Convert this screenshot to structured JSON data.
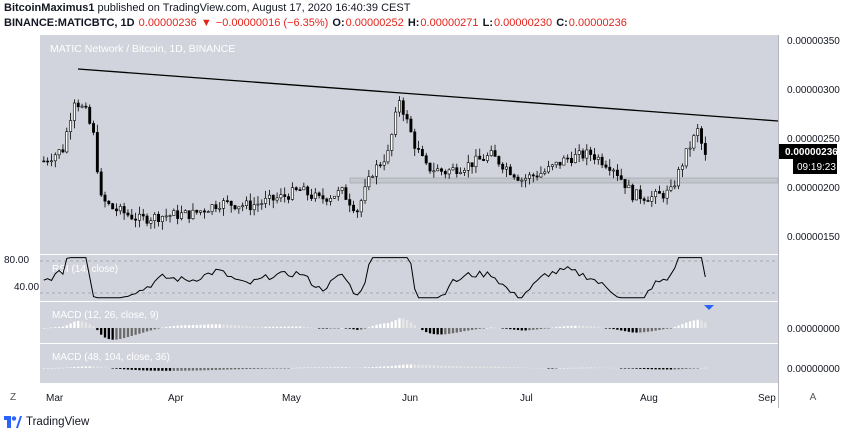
{
  "header": {
    "author": "BitcoinMaximus1",
    "published_text": "published on TradingView.com, August 17, 2020 16:40:39 CEST",
    "symbol": "BINANCE:MATICBTC, 1D",
    "last": "0.00000236",
    "change_arrow": "▼",
    "change": "−0.00000016 (−6.35%)",
    "o_label": "O:",
    "o_value": "0.00000252",
    "h_label": "H:",
    "h_value": "0.00000271",
    "l_label": "L:",
    "l_value": "0.00000230",
    "c_label": "C:",
    "c_value": "0.00000236"
  },
  "chart_title": "MATIC Network / Bitcoin, 1D, BINANCE",
  "price_axis_labels": [
    "0.00000350",
    "0.00000300",
    "0.00000250",
    "0.00000200",
    "0.00000150"
  ],
  "last_price_label": "0.00000236",
  "countdown_label": "09:19:23",
  "rsi_axis_labels": [
    "80.00",
    "40.00"
  ],
  "rsi_label": "RSI (14, close)",
  "macd1_label": "MACD (12, 26, close, 9)",
  "macd1_axis_label": "0.00000000",
  "macd2_label": "MACD (48, 104, close, 36)",
  "macd2_axis_label": "0.00000000",
  "time_axis_labels": [
    "Mar",
    "Apr",
    "May",
    "Jun",
    "Jul",
    "Aug",
    "Sep"
  ],
  "footer": {
    "brand": "TradingView",
    "z_button": "Z",
    "a_button": "A"
  },
  "colors": {
    "pane_bg": "#d1d4dc",
    "candle_up": "#ffffff",
    "candle_down": "#000000",
    "down_text": "#e3241b",
    "histogram_pos": "#ffffff",
    "histogram_neg": "#000000",
    "brand_blue": "#2962ff"
  },
  "chart_data": {
    "type": "candlestick",
    "symbol": "MATICBTC",
    "interval": "1D",
    "x_range": [
      "2020-02-25",
      "2020-09-05"
    ],
    "y_range": [
      1.3e-06,
      3.7e-06
    ],
    "series": [
      {
        "name": "price_close_approx",
        "points": [
          [
            "2020-02-26",
            2.32e-06
          ],
          [
            "2020-03-02",
            2.45e-06
          ],
          [
            "2020-03-05",
            3e-06
          ],
          [
            "2020-03-08",
            2.85e-06
          ],
          [
            "2020-03-10",
            2.6e-06
          ],
          [
            "2020-03-12",
            1.9e-06
          ],
          [
            "2020-03-15",
            1.8e-06
          ],
          [
            "2020-03-18",
            1.75e-06
          ],
          [
            "2020-03-22",
            1.68e-06
          ],
          [
            "2020-03-28",
            1.72e-06
          ],
          [
            "2020-04-05",
            1.74e-06
          ],
          [
            "2020-04-12",
            1.86e-06
          ],
          [
            "2020-04-20",
            1.83e-06
          ],
          [
            "2020-04-28",
            1.92e-06
          ],
          [
            "2020-05-03",
            2e-06
          ],
          [
            "2020-05-08",
            1.9e-06
          ],
          [
            "2020-05-14",
            1.98e-06
          ],
          [
            "2020-05-18",
            1.78e-06
          ],
          [
            "2020-05-22",
            2.2e-06
          ],
          [
            "2020-05-26",
            2.4e-06
          ],
          [
            "2020-05-29",
            3e-06
          ],
          [
            "2020-06-02",
            2.5e-06
          ],
          [
            "2020-06-05",
            2.25e-06
          ],
          [
            "2020-06-10",
            2.2e-06
          ],
          [
            "2020-06-16",
            2.28e-06
          ],
          [
            "2020-06-22",
            2.38e-06
          ],
          [
            "2020-06-30",
            2.12e-06
          ],
          [
            "2020-07-06",
            2.2e-06
          ],
          [
            "2020-07-12",
            2.35e-06
          ],
          [
            "2020-07-18",
            2.4e-06
          ],
          [
            "2020-07-24",
            2.25e-06
          ],
          [
            "2020-07-29",
            1.95e-06
          ],
          [
            "2020-08-03",
            1.92e-06
          ],
          [
            "2020-08-08",
            1.98e-06
          ],
          [
            "2020-08-12",
            2.4e-06
          ],
          [
            "2020-08-15",
            2.65e-06
          ],
          [
            "2020-08-17",
            2.36e-06
          ]
        ]
      },
      {
        "name": "resistance_line",
        "points": [
          [
            "2020-03-05",
            3.2e-06
          ],
          [
            "2020-09-03",
            2.68e-06
          ]
        ]
      },
      {
        "name": "support_zone",
        "points": [
          [
            "2020-05-20",
            2.08e-06
          ],
          [
            "2020-09-03",
            2.03e-06
          ]
        ]
      }
    ]
  }
}
